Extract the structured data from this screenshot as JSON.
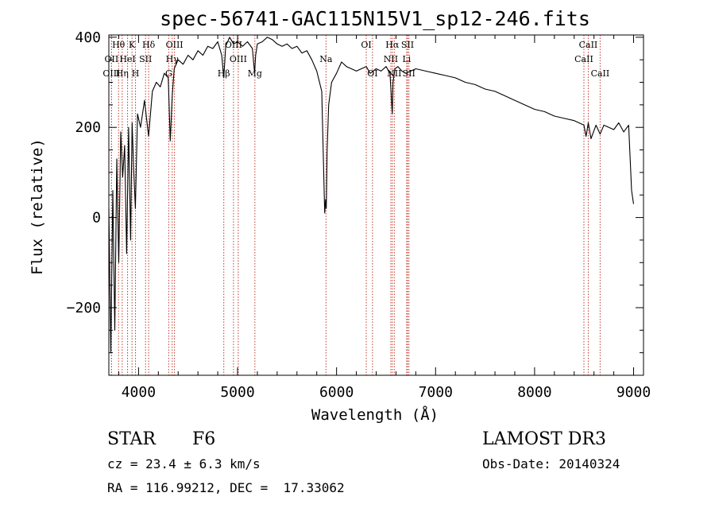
{
  "chart_data": {
    "type": "line",
    "title": "spec-56741-GAC115N15V1_sp12-246.fits",
    "xlabel": "Wavelength (Å)",
    "ylabel": "Flux (relative)",
    "xlim": [
      3700,
      9100
    ],
    "ylim": [
      -350,
      405
    ],
    "xticks": [
      4000,
      5000,
      6000,
      7000,
      8000,
      9000
    ],
    "yticks": [
      -200,
      0,
      200,
      400
    ],
    "grid": false,
    "series": [
      {
        "name": "flux",
        "x": [
          3700,
          3720,
          3740,
          3760,
          3780,
          3800,
          3820,
          3840,
          3860,
          3880,
          3900,
          3920,
          3935,
          3950,
          3968,
          3990,
          4020,
          4060,
          4101,
          4140,
          4180,
          4220,
          4260,
          4300,
          4320,
          4340,
          4360,
          4400,
          4450,
          4500,
          4550,
          4600,
          4650,
          4700,
          4750,
          4800,
          4840,
          4861,
          4880,
          4920,
          4960,
          5000,
          5050,
          5100,
          5150,
          5172,
          5183,
          5200,
          5250,
          5300,
          5350,
          5400,
          5450,
          5500,
          5550,
          5600,
          5650,
          5700,
          5750,
          5800,
          5850,
          5880,
          5890,
          5896,
          5905,
          5920,
          5950,
          6000,
          6050,
          6100,
          6150,
          6200,
          6250,
          6300,
          6340,
          6400,
          6450,
          6500,
          6540,
          6563,
          6570,
          6590,
          6620,
          6660,
          6700,
          6750,
          6800,
          6900,
          7000,
          7100,
          7200,
          7300,
          7400,
          7500,
          7600,
          7700,
          7800,
          7900,
          8000,
          8100,
          8200,
          8300,
          8400,
          8498,
          8520,
          8542,
          8570,
          8620,
          8662,
          8700,
          8750,
          8800,
          8850,
          8900,
          8950,
          8980,
          9000
        ],
        "y": [
          20,
          -300,
          60,
          -250,
          130,
          -100,
          190,
          90,
          160,
          -80,
          200,
          -50,
          210,
          110,
          20,
          230,
          200,
          260,
          180,
          280,
          300,
          290,
          320,
          310,
          170,
          270,
          330,
          350,
          340,
          360,
          350,
          370,
          360,
          380,
          375,
          390,
          360,
          310,
          380,
          400,
          385,
          390,
          380,
          390,
          375,
          320,
          360,
          385,
          390,
          400,
          395,
          385,
          380,
          385,
          375,
          380,
          365,
          370,
          350,
          325,
          280,
          10,
          40,
          20,
          150,
          250,
          300,
          320,
          345,
          335,
          330,
          325,
          330,
          335,
          320,
          330,
          325,
          335,
          320,
          230,
          300,
          330,
          335,
          325,
          320,
          325,
          330,
          325,
          320,
          315,
          310,
          300,
          295,
          285,
          280,
          270,
          260,
          250,
          240,
          235,
          225,
          220,
          215,
          205,
          180,
          210,
          175,
          205,
          185,
          205,
          200,
          195,
          210,
          190,
          205,
          60,
          30
        ]
      }
    ],
    "spectral_lines": [
      {
        "label": "Hθ",
        "wl": 3798,
        "row": 1
      },
      {
        "label": "K",
        "wl": 3934,
        "row": 1
      },
      {
        "label": "Hδ",
        "wl": 4102,
        "row": 1
      },
      {
        "label": "OIII",
        "wl": 4363,
        "row": 1
      },
      {
        "label": "OII",
        "wl": 3727,
        "row": 2
      },
      {
        "label": "HeI",
        "wl": 3889,
        "row": 2
      },
      {
        "label": "SII",
        "wl": 4071,
        "row": 2
      },
      {
        "label": "Hγ",
        "wl": 4340,
        "row": 2
      },
      {
        "label": "OIII",
        "wl": 3727,
        "row": 3
      },
      {
        "label": "Hη",
        "wl": 3835,
        "row": 3
      },
      {
        "label": "H",
        "wl": 3969,
        "row": 3
      },
      {
        "label": "G",
        "wl": 4305,
        "row": 3
      },
      {
        "label": "OIII",
        "wl": 4959,
        "row": 1
      },
      {
        "label": "OIII",
        "wl": 5007,
        "row": 2
      },
      {
        "label": "Hβ",
        "wl": 4861,
        "row": 3
      },
      {
        "label": "Mg",
        "wl": 5175,
        "row": 3
      },
      {
        "label": "Na",
        "wl": 5893,
        "row": 2
      },
      {
        "label": "OI",
        "wl": 6300,
        "row": 1
      },
      {
        "label": "Hα",
        "wl": 6563,
        "row": 1
      },
      {
        "label": "SII",
        "wl": 6717,
        "row": 1
      },
      {
        "label": "NII",
        "wl": 6548,
        "row": 2
      },
      {
        "label": "Li",
        "wl": 6708,
        "row": 2
      },
      {
        "label": "OI",
        "wl": 6363,
        "row": 3
      },
      {
        "label": "NII",
        "wl": 6583,
        "row": 3
      },
      {
        "label": "SII",
        "wl": 6731,
        "row": 3
      },
      {
        "label": "CaII",
        "wl": 8542,
        "row": 1
      },
      {
        "label": "CaII",
        "wl": 8498,
        "row": 2
      },
      {
        "label": "CaII",
        "wl": 8662,
        "row": 3
      }
    ]
  },
  "info": {
    "object_class": "STAR",
    "subclass": "F6",
    "redshift": "cz = 23.4 ± 6.3 km/s",
    "coords": "RA = 116.99212, DEC =  17.33062",
    "survey": "LAMOST DR3",
    "obs_date": "Obs-Date: 20140324"
  }
}
